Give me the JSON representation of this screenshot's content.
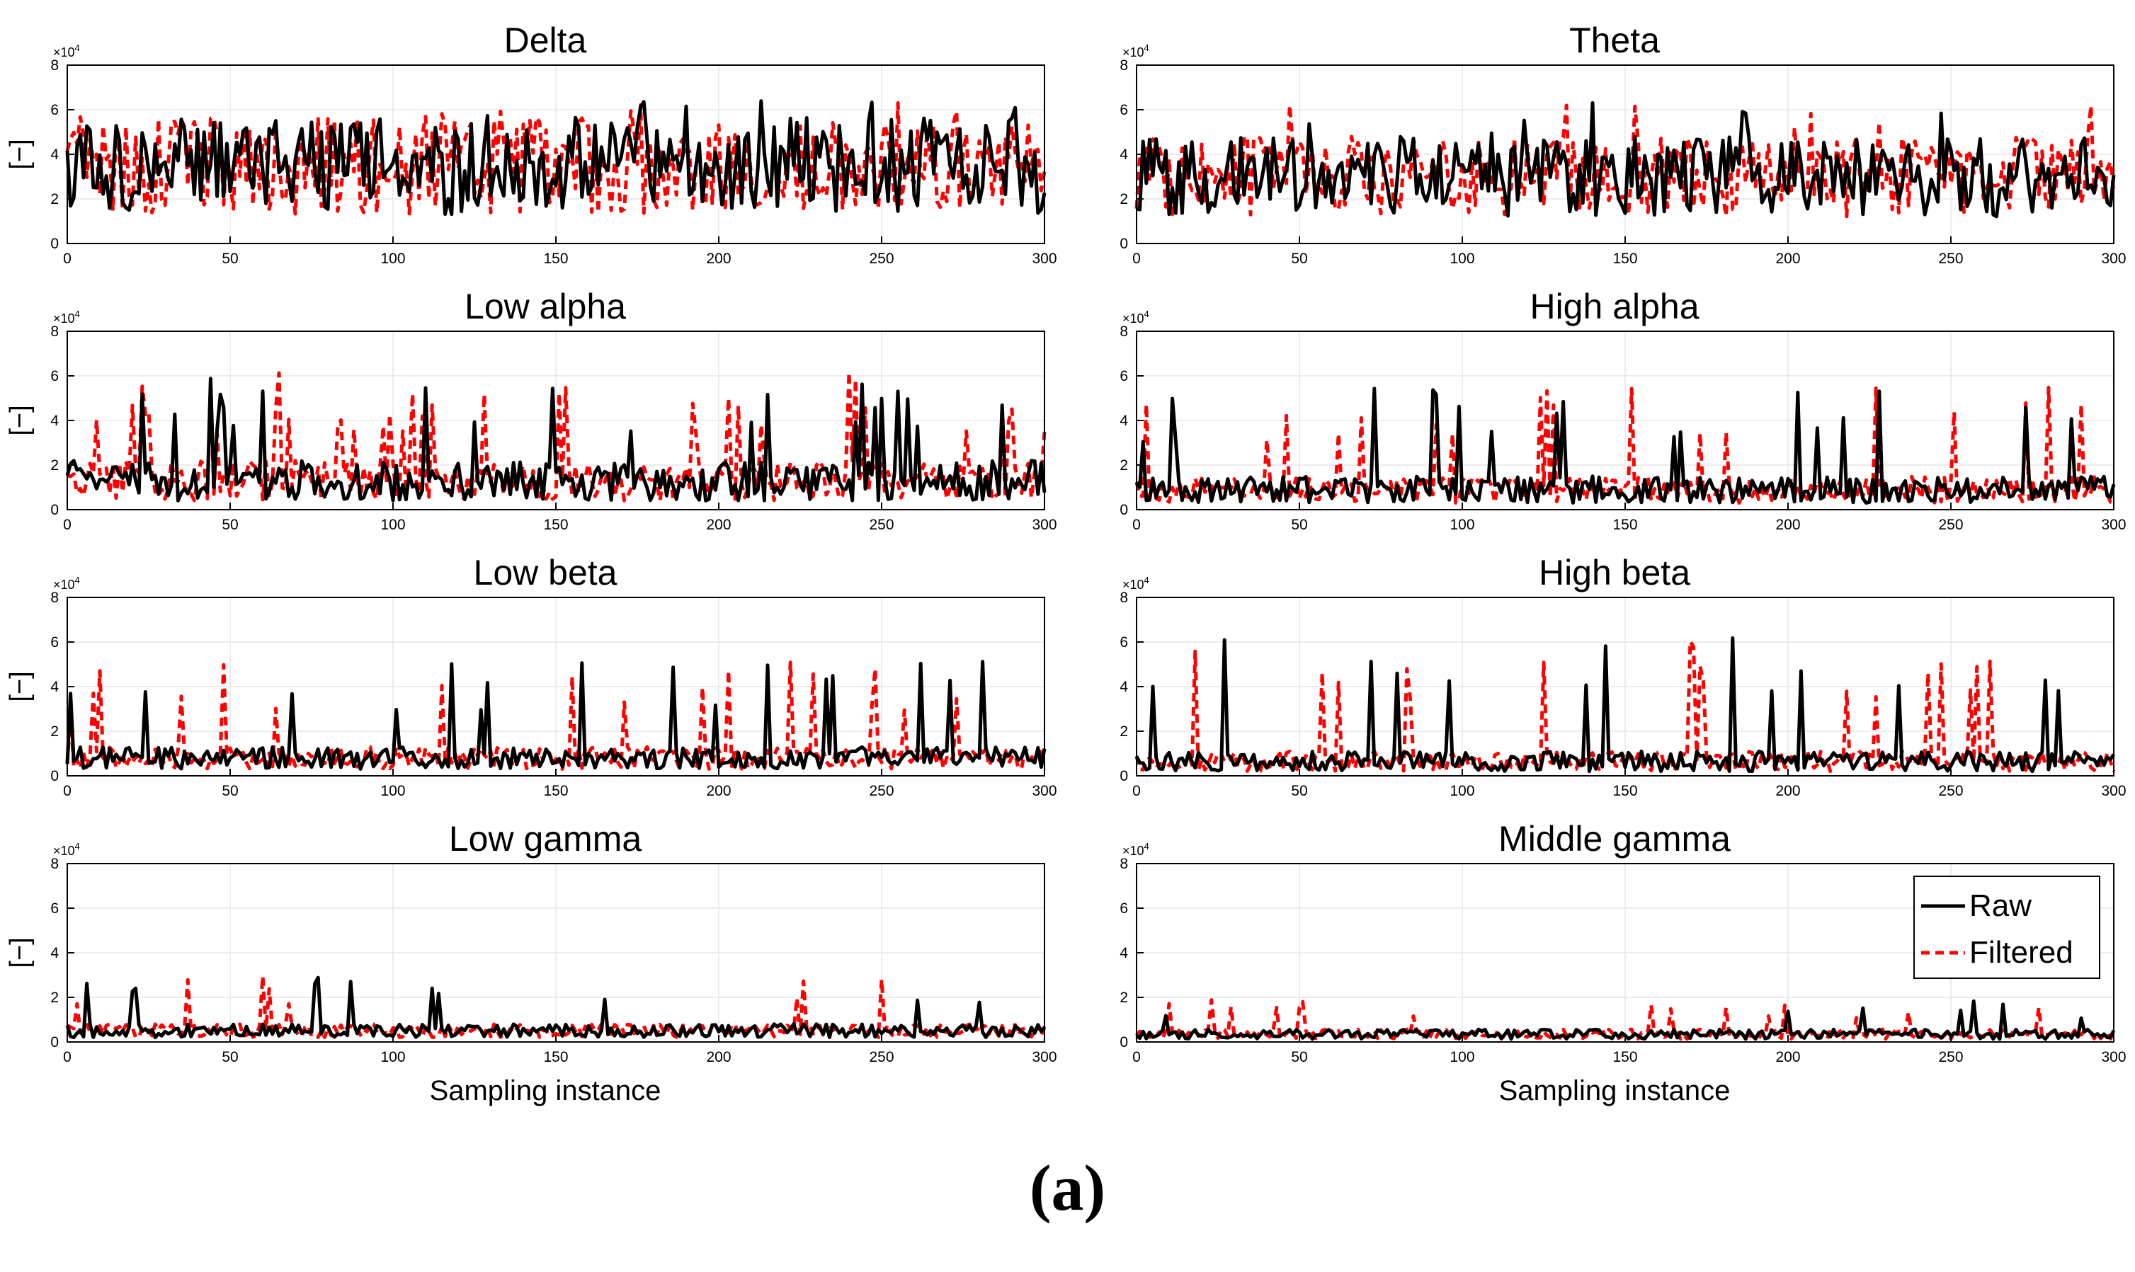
{
  "chart_data": {
    "type": "line",
    "shared": {
      "x_range": [
        0,
        300
      ],
      "y_range": [
        0,
        80000
      ],
      "x_ticks": [
        "0",
        "50",
        "100",
        "150",
        "200",
        "250",
        "300"
      ],
      "y_ticks": [
        "0",
        "2",
        "4",
        "6",
        "8"
      ],
      "y_multiplier": "×10",
      "y_multiplier_exp": "4",
      "ylabel": "[−]",
      "xlabel": "Sampling instance",
      "grid": true,
      "series_styles": [
        {
          "name": "Raw",
          "color": "#000000",
          "dash": "solid"
        },
        {
          "name": "Filtered",
          "color": "#ff0000",
          "dash": "dashed"
        }
      ]
    },
    "panels": [
      {
        "title": "Delta",
        "level": 35000,
        "spread": 22000,
        "spike": 64000,
        "spike_prob": 0.05,
        "seed": 11,
        "legend": false,
        "xlabel": false
      },
      {
        "title": "Theta",
        "level": 30000,
        "spread": 18000,
        "spike": 64000,
        "spike_prob": 0.05,
        "seed": 23,
        "legend": false,
        "xlabel": false
      },
      {
        "title": "Low alpha",
        "level": 13000,
        "spread": 9000,
        "spike": 62000,
        "spike_prob": 0.08,
        "seed": 37,
        "legend": false,
        "xlabel": false
      },
      {
        "title": "High alpha",
        "level": 9000,
        "spread": 6000,
        "spike": 55000,
        "spike_prob": 0.06,
        "seed": 41,
        "legend": false,
        "xlabel": false
      },
      {
        "title": "Low beta",
        "level": 8000,
        "spread": 5000,
        "spike": 52000,
        "spike_prob": 0.05,
        "seed": 53,
        "legend": false,
        "xlabel": false
      },
      {
        "title": "High beta",
        "level": 6500,
        "spread": 4500,
        "spike": 62000,
        "spike_prob": 0.04,
        "seed": 67,
        "legend": false,
        "xlabel": false
      },
      {
        "title": "Low gamma",
        "level": 5000,
        "spread": 3000,
        "spike": 30000,
        "spike_prob": 0.03,
        "seed": 71,
        "legend": false,
        "xlabel": true
      },
      {
        "title": "Middle gamma",
        "level": 3500,
        "spread": 2200,
        "spike": 19000,
        "spike_prob": 0.03,
        "seed": 83,
        "legend": true,
        "xlabel": true
      }
    ],
    "legend": {
      "entries": [
        "Raw",
        "Filtered"
      ],
      "position": "top-right of Middle gamma panel"
    }
  },
  "caption": "(a)"
}
